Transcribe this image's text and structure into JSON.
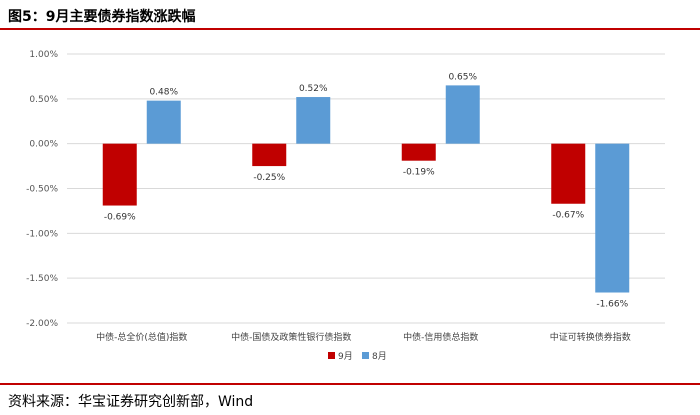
{
  "figure": {
    "title": "图5：9月主要债券指数涨跌幅",
    "source": "资料来源：华宝证券研究创新部，Wind"
  },
  "colors": {
    "accent_rule": "#c00000",
    "series_sep": "#c00000",
    "series_aug": "#5b9bd5",
    "grid": "#d9d9d9"
  },
  "chart_data": {
    "type": "bar",
    "categories": [
      "中债-总全价(总值)指数",
      "中债-国债及政策性银行债指数",
      "中债-信用债总指数",
      "中证可转换债券指数"
    ],
    "series": [
      {
        "name": "9月",
        "values": [
          -0.69,
          -0.25,
          -0.19,
          -0.67
        ],
        "labels": [
          "-0.69%",
          "-0.25%",
          "-0.19%",
          "-0.67%"
        ]
      },
      {
        "name": "8月",
        "values": [
          0.48,
          0.52,
          0.65,
          -1.66
        ],
        "labels": [
          "0.48%",
          "0.52%",
          "0.65%",
          "-1.66%"
        ]
      }
    ],
    "ylim": [
      -2.0,
      1.0
    ],
    "yticks": [
      1.0,
      0.5,
      0.0,
      -0.5,
      -1.0,
      -1.5,
      -2.0
    ],
    "ytick_labels": [
      "1.00%",
      "0.50%",
      "0.00%",
      "-0.50%",
      "-1.00%",
      "-1.50%",
      "-2.00%"
    ],
    "grid": true,
    "legend_position": "bottom"
  }
}
